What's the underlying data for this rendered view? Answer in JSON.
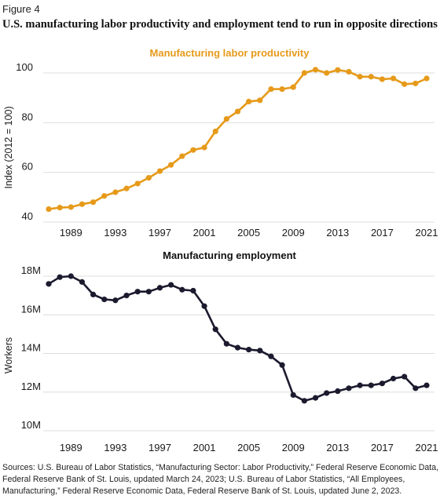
{
  "figure_label": "Figure 4",
  "title": "U.S. manufacturing labor productivity and employment tend to run in opposite directions",
  "sources": "Sources: U.S. Bureau of Labor Statistics, “Manufacturing Sector: Labor Productivity,” Federal Reserve Economic Data, Federal Reserve Bank of St. Louis, updated March 24, 2023; U.S. Bureau of Labor Statistics, “All Employees, Manufacturing,” Federal Reserve Economic Data, Federal Reserve Bank of St. Louis, updated June 2, 2023.",
  "colors": {
    "productivity": "#E69A1A",
    "employment": "#1B1A2E",
    "grid": "#dcdcdc"
  },
  "chart_data": [
    {
      "type": "line",
      "title": "Manufacturing labor productivity",
      "ylabel": "Index (2012 = 100)",
      "xlabel": "",
      "xlim": [
        1987,
        2021
      ],
      "ylim": [
        40,
        100
      ],
      "yticks": [
        40,
        60,
        80,
        100
      ],
      "ytick_labels": [
        "40",
        "60",
        "80",
        "100"
      ],
      "xticks": [
        1989,
        1993,
        1997,
        2001,
        2005,
        2009,
        2013,
        2017,
        2021
      ],
      "grid": true,
      "x": [
        1987,
        1988,
        1989,
        1990,
        1991,
        1992,
        1993,
        1994,
        1995,
        1996,
        1997,
        1998,
        1999,
        2000,
        2001,
        2002,
        2003,
        2004,
        2005,
        2006,
        2007,
        2008,
        2009,
        2010,
        2011,
        2012,
        2013,
        2014,
        2015,
        2016,
        2017,
        2018,
        2019,
        2020,
        2021
      ],
      "values": [
        45.2,
        45.8,
        46.0,
        47.2,
        48.0,
        50.5,
        52.0,
        53.5,
        55.5,
        57.8,
        60.5,
        63.0,
        66.5,
        69.0,
        70.0,
        76.5,
        81.5,
        84.5,
        88.5,
        89.0,
        93.5,
        93.5,
        94.3,
        100.0,
        101.3,
        100.0,
        101.2,
        100.5,
        98.5,
        98.5,
        97.5,
        97.8,
        95.5,
        95.8,
        97.8
      ]
    },
    {
      "type": "line",
      "title": "Manufacturing employment",
      "ylabel": "Workers",
      "xlabel": "",
      "xlim": [
        1987,
        2021
      ],
      "ylim": [
        10,
        18
      ],
      "yticks": [
        10,
        12,
        14,
        16,
        18
      ],
      "ytick_labels": [
        "10M",
        "12M",
        "14M",
        "16M",
        "18M"
      ],
      "xticks": [
        1989,
        1993,
        1997,
        2001,
        2005,
        2009,
        2013,
        2017,
        2021
      ],
      "grid": true,
      "x": [
        1987,
        1988,
        1989,
        1990,
        1991,
        1992,
        1993,
        1994,
        1995,
        1996,
        1997,
        1998,
        1999,
        2000,
        2001,
        2002,
        2003,
        2004,
        2005,
        2006,
        2007,
        2008,
        2009,
        2010,
        2011,
        2012,
        2013,
        2014,
        2015,
        2016,
        2017,
        2018,
        2019,
        2020,
        2021
      ],
      "values": [
        17.6,
        17.95,
        18.0,
        17.7,
        17.05,
        16.8,
        16.75,
        17.0,
        17.2,
        17.2,
        17.4,
        17.55,
        17.3,
        17.25,
        16.45,
        15.25,
        14.5,
        14.3,
        14.2,
        14.15,
        13.85,
        13.4,
        11.85,
        11.55,
        11.7,
        11.95,
        12.05,
        12.2,
        12.35,
        12.35,
        12.45,
        12.7,
        12.8,
        12.2,
        12.35
      ]
    }
  ]
}
